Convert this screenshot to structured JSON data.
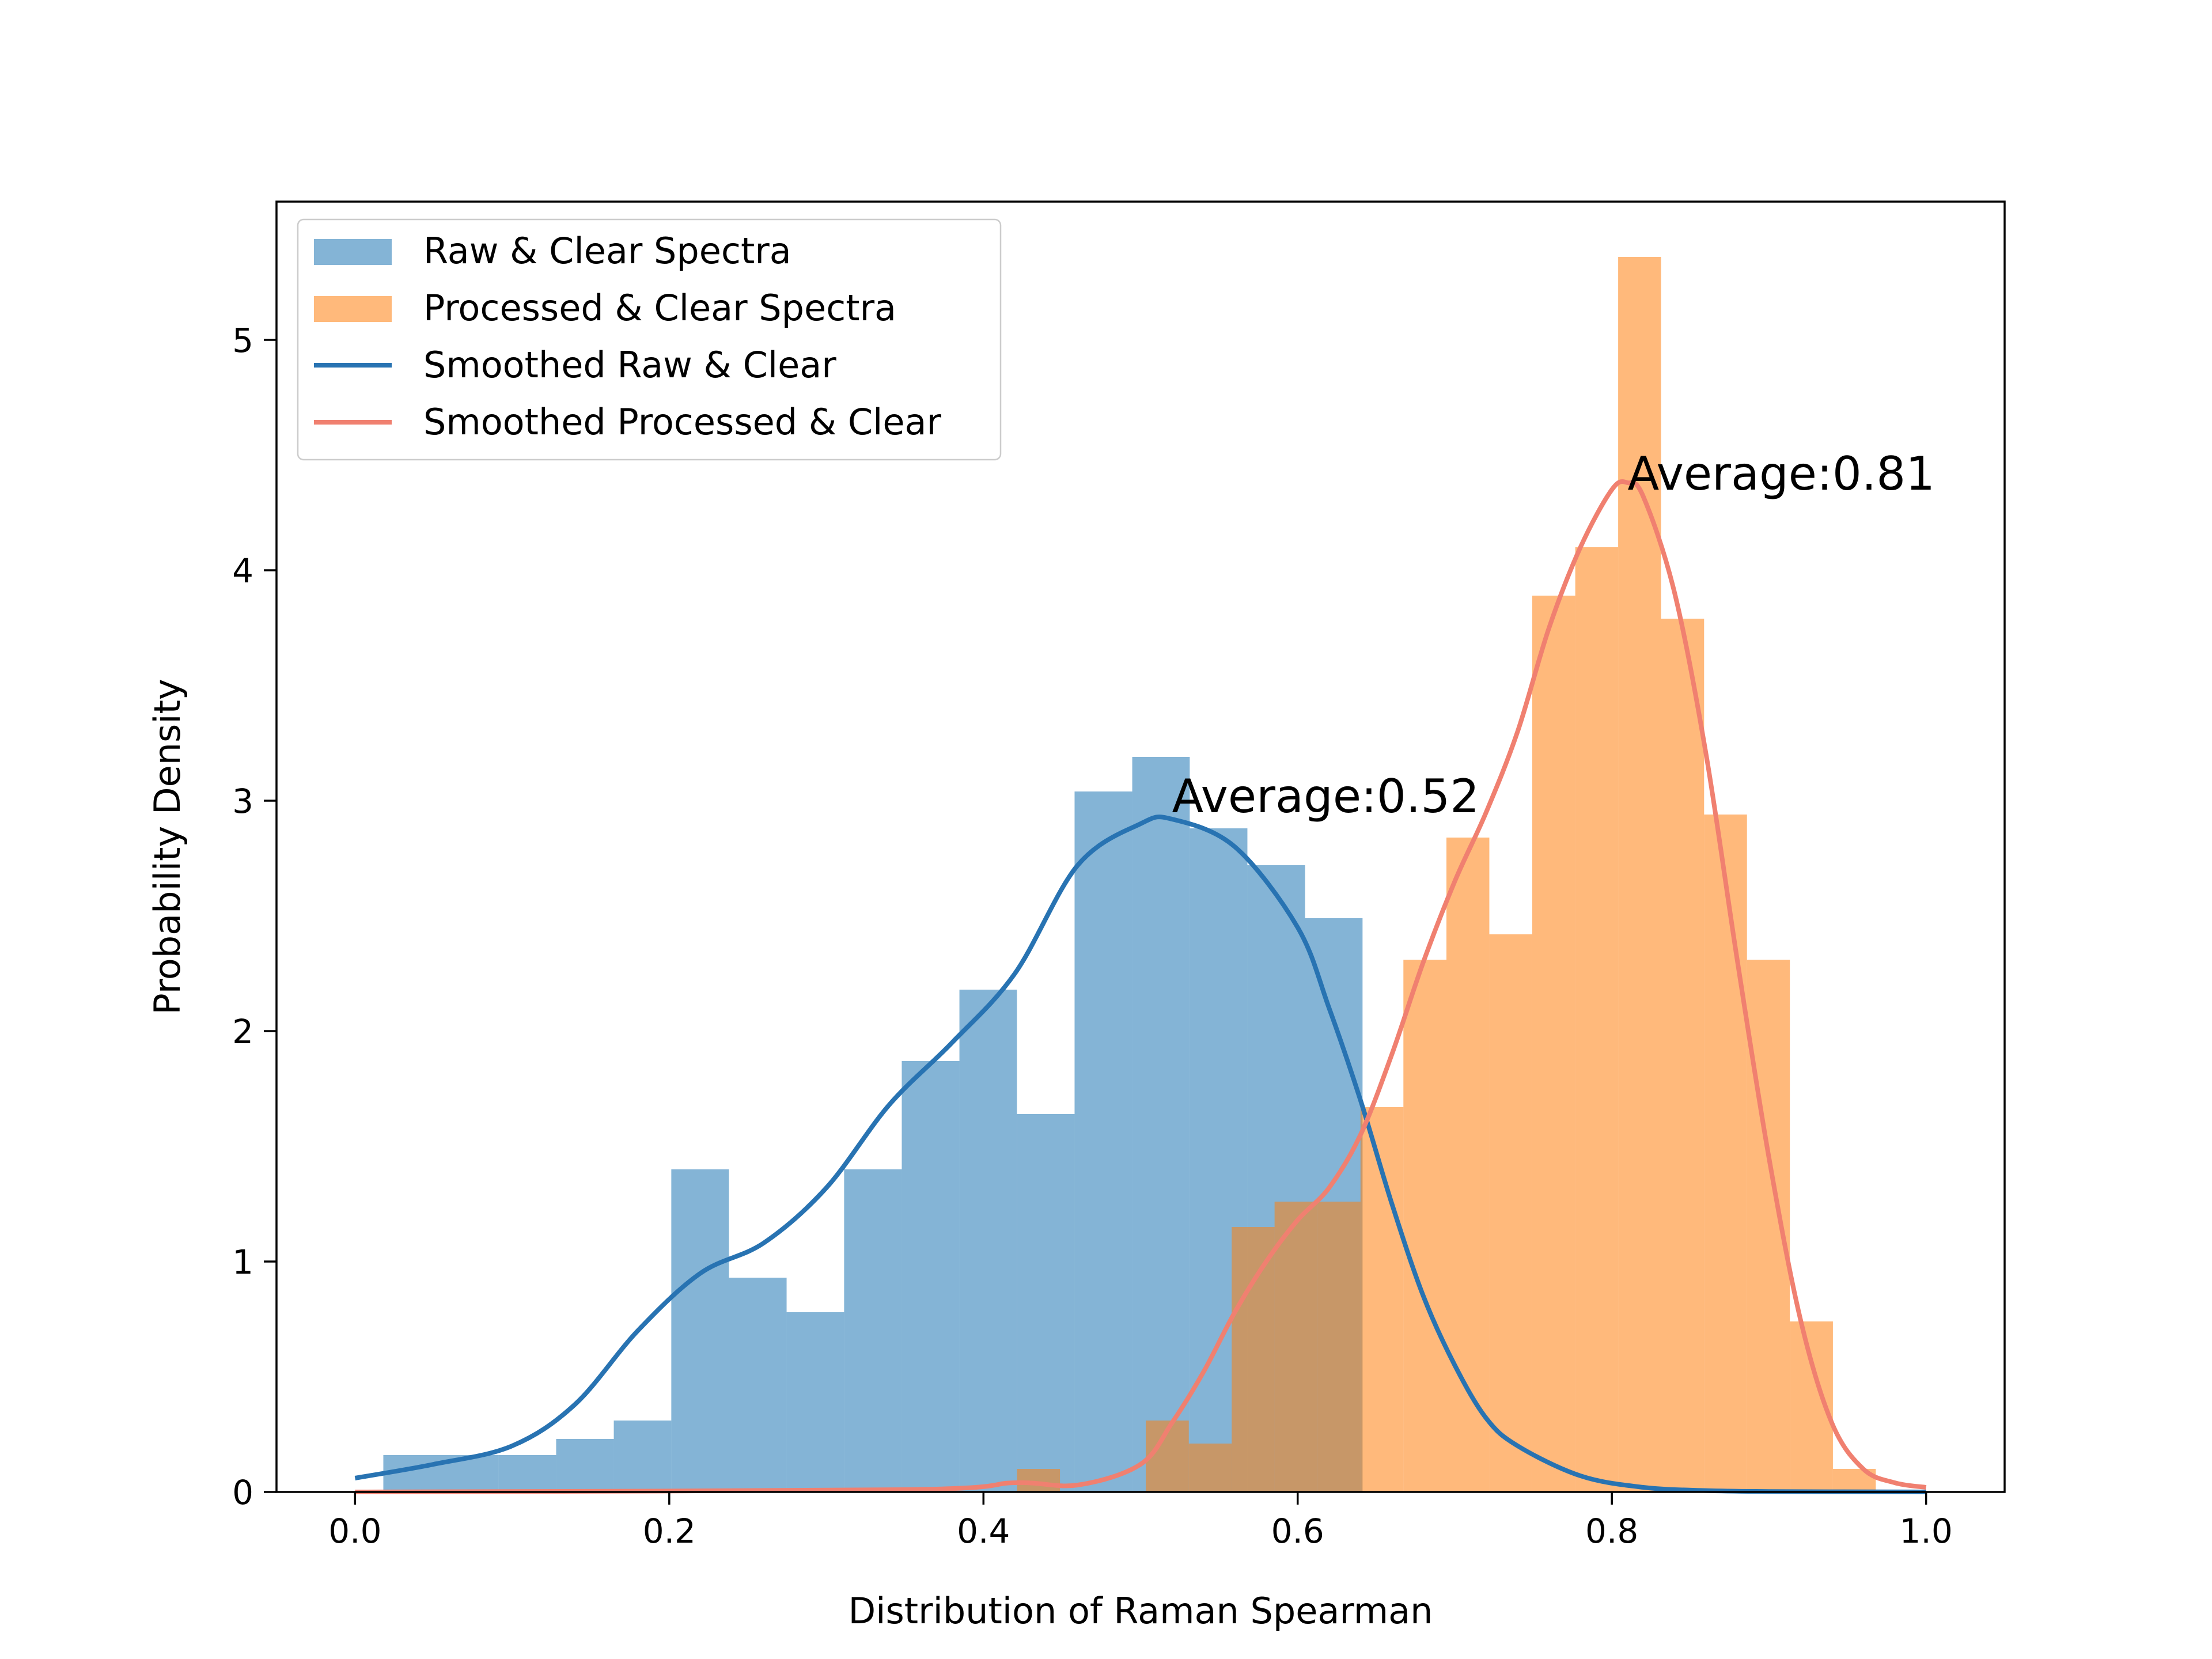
{
  "chart_data": {
    "type": "bar",
    "xlabel": "Distribution of Raman Spearman",
    "ylabel": "Probability Density",
    "xlim": [
      -0.05,
      1.05
    ],
    "ylim": [
      0,
      5.6
    ],
    "x_ticks": [
      0.0,
      0.2,
      0.4,
      0.6,
      0.8,
      1.0
    ],
    "x_tick_labels": [
      "0.0",
      "0.2",
      "0.4",
      "0.6",
      "0.8",
      "1.0"
    ],
    "y_ticks": [
      0,
      1,
      2,
      3,
      4,
      5
    ],
    "y_tick_labels": [
      "0",
      "1",
      "2",
      "3",
      "4",
      "5"
    ],
    "grid": false,
    "legend_position": "top-left",
    "histograms": [
      {
        "name": "Raw & Clear Spectra",
        "color": "#1f77b4",
        "alpha": 0.55,
        "bin_edges": [
          0.018,
          0.0547,
          0.0913,
          0.128,
          0.1647,
          0.2013,
          0.238,
          0.2747,
          0.3113,
          0.348,
          0.3847,
          0.4213,
          0.458,
          0.4947,
          0.5313,
          0.568,
          0.6047,
          0.6413
        ],
        "values": [
          0.16,
          0.16,
          0.16,
          0.23,
          0.31,
          1.4,
          0.93,
          0.78,
          1.4,
          1.87,
          2.18,
          1.64,
          3.04,
          3.19,
          2.88,
          2.72,
          2.49
        ]
      },
      {
        "name": "Processed & Clear Spectra",
        "color": "#ff7f0e",
        "alpha": 0.55,
        "bin_edges": [
          0.4213,
          0.4487,
          0.476,
          0.5033,
          0.5307,
          0.558,
          0.5853,
          0.6127,
          0.64,
          0.6673,
          0.6947,
          0.722,
          0.7493,
          0.7767,
          0.804,
          0.8313,
          0.8587,
          0.886,
          0.9133,
          0.9407,
          0.968
        ],
        "values": [
          0.1,
          0.0,
          0.0,
          0.31,
          0.21,
          1.15,
          1.26,
          1.26,
          1.67,
          2.31,
          2.84,
          2.42,
          3.89,
          4.1,
          5.36,
          3.79,
          2.94,
          2.31,
          0.74,
          0.1
        ]
      }
    ],
    "series": [
      {
        "name": "Smoothed Raw & Clear",
        "color": "#2873b2",
        "x": [
          0.0,
          0.05,
          0.1,
          0.14,
          0.18,
          0.22,
          0.26,
          0.3,
          0.34,
          0.38,
          0.42,
          0.46,
          0.5,
          0.52,
          0.56,
          0.6,
          0.62,
          0.64,
          0.66,
          0.68,
          0.7,
          0.72,
          0.74,
          0.78,
          0.82,
          0.86,
          0.9,
          1.0
        ],
        "values": [
          0.06,
          0.12,
          0.2,
          0.38,
          0.7,
          0.95,
          1.08,
          1.32,
          1.68,
          1.95,
          2.25,
          2.72,
          2.9,
          2.92,
          2.8,
          2.45,
          2.1,
          1.7,
          1.25,
          0.85,
          0.55,
          0.32,
          0.2,
          0.07,
          0.02,
          0.006,
          0.002,
          0.0
        ]
      },
      {
        "name": "Smoothed Processed & Clear",
        "color": "#f08070",
        "x": [
          0.0,
          0.35,
          0.42,
          0.46,
          0.5,
          0.52,
          0.54,
          0.56,
          0.58,
          0.6,
          0.62,
          0.64,
          0.66,
          0.68,
          0.7,
          0.72,
          0.74,
          0.76,
          0.78,
          0.8,
          0.81,
          0.82,
          0.84,
          0.86,
          0.88,
          0.9,
          0.92,
          0.94,
          0.96,
          0.98,
          1.0
        ],
        "values": [
          0.0,
          0.01,
          0.04,
          0.03,
          0.12,
          0.3,
          0.52,
          0.78,
          1.0,
          1.18,
          1.32,
          1.55,
          1.9,
          2.3,
          2.65,
          2.95,
          3.3,
          3.75,
          4.1,
          4.35,
          4.38,
          4.32,
          3.9,
          3.2,
          2.3,
          1.45,
          0.75,
          0.3,
          0.1,
          0.04,
          0.02
        ]
      }
    ],
    "annotations": [
      {
        "text": "Average:0.52",
        "x": 0.52,
        "y": 2.95
      },
      {
        "text": "Average:0.81",
        "x": 0.81,
        "y": 4.35
      }
    ]
  }
}
